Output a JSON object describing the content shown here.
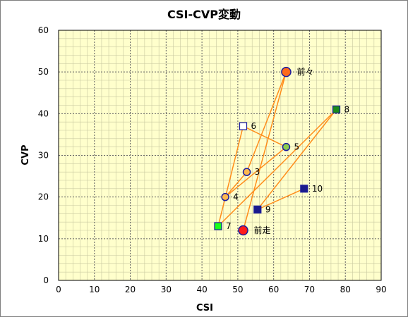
{
  "chart_data": {
    "type": "scatter",
    "title": "CSI-CVP変動",
    "xlabel": "CSI",
    "ylabel": "CVP",
    "xlim": [
      0,
      90
    ],
    "ylim": [
      0,
      60
    ],
    "x_ticks": [
      0,
      10,
      20,
      30,
      40,
      50,
      60,
      70,
      80,
      90
    ],
    "y_ticks": [
      0,
      10,
      20,
      30,
      40,
      50,
      60
    ],
    "minor_grid_step": 2,
    "major_grid_step": 10,
    "plot_background": "#ffffcc",
    "line_color": "#ff8c1a",
    "points": [
      {
        "label": "前走",
        "x": 51.5,
        "y": 12,
        "marker": "circle-large",
        "fill": "#ff1a1a",
        "stroke": "#1a1aa0"
      },
      {
        "label": "前々",
        "x": 63.5,
        "y": 50,
        "marker": "circle-large",
        "fill": "#ff6a1a",
        "stroke": "#1a1aa0"
      },
      {
        "label": "3",
        "x": 52.5,
        "y": 26,
        "marker": "circle",
        "fill": "#ffb84d",
        "stroke": "#1a1aa0"
      },
      {
        "label": "4",
        "x": 46.5,
        "y": 20,
        "marker": "circle",
        "fill": "#ffb84d",
        "stroke": "#1a1aa0"
      },
      {
        "label": "5",
        "x": 63.5,
        "y": 32,
        "marker": "circle",
        "fill": "#8ccc4d",
        "stroke": "#1a1aa0"
      },
      {
        "label": "6",
        "x": 51.5,
        "y": 37,
        "marker": "square",
        "fill": "#ffffff",
        "stroke": "#1a1aa0"
      },
      {
        "label": "7",
        "x": 44.5,
        "y": 13,
        "marker": "square",
        "fill": "#1aff1a",
        "stroke": "#1a1aa0"
      },
      {
        "label": "8",
        "x": 77.5,
        "y": 41,
        "marker": "square",
        "fill": "#1a8c1a",
        "stroke": "#1a1aa0"
      },
      {
        "label": "9",
        "x": 55.5,
        "y": 17,
        "marker": "square",
        "fill": "#1a1a8c",
        "stroke": "#1a1aa0"
      },
      {
        "label": "10",
        "x": 68.5,
        "y": 22,
        "marker": "square",
        "fill": "#1a1a8c",
        "stroke": "#1a1aa0"
      }
    ]
  }
}
